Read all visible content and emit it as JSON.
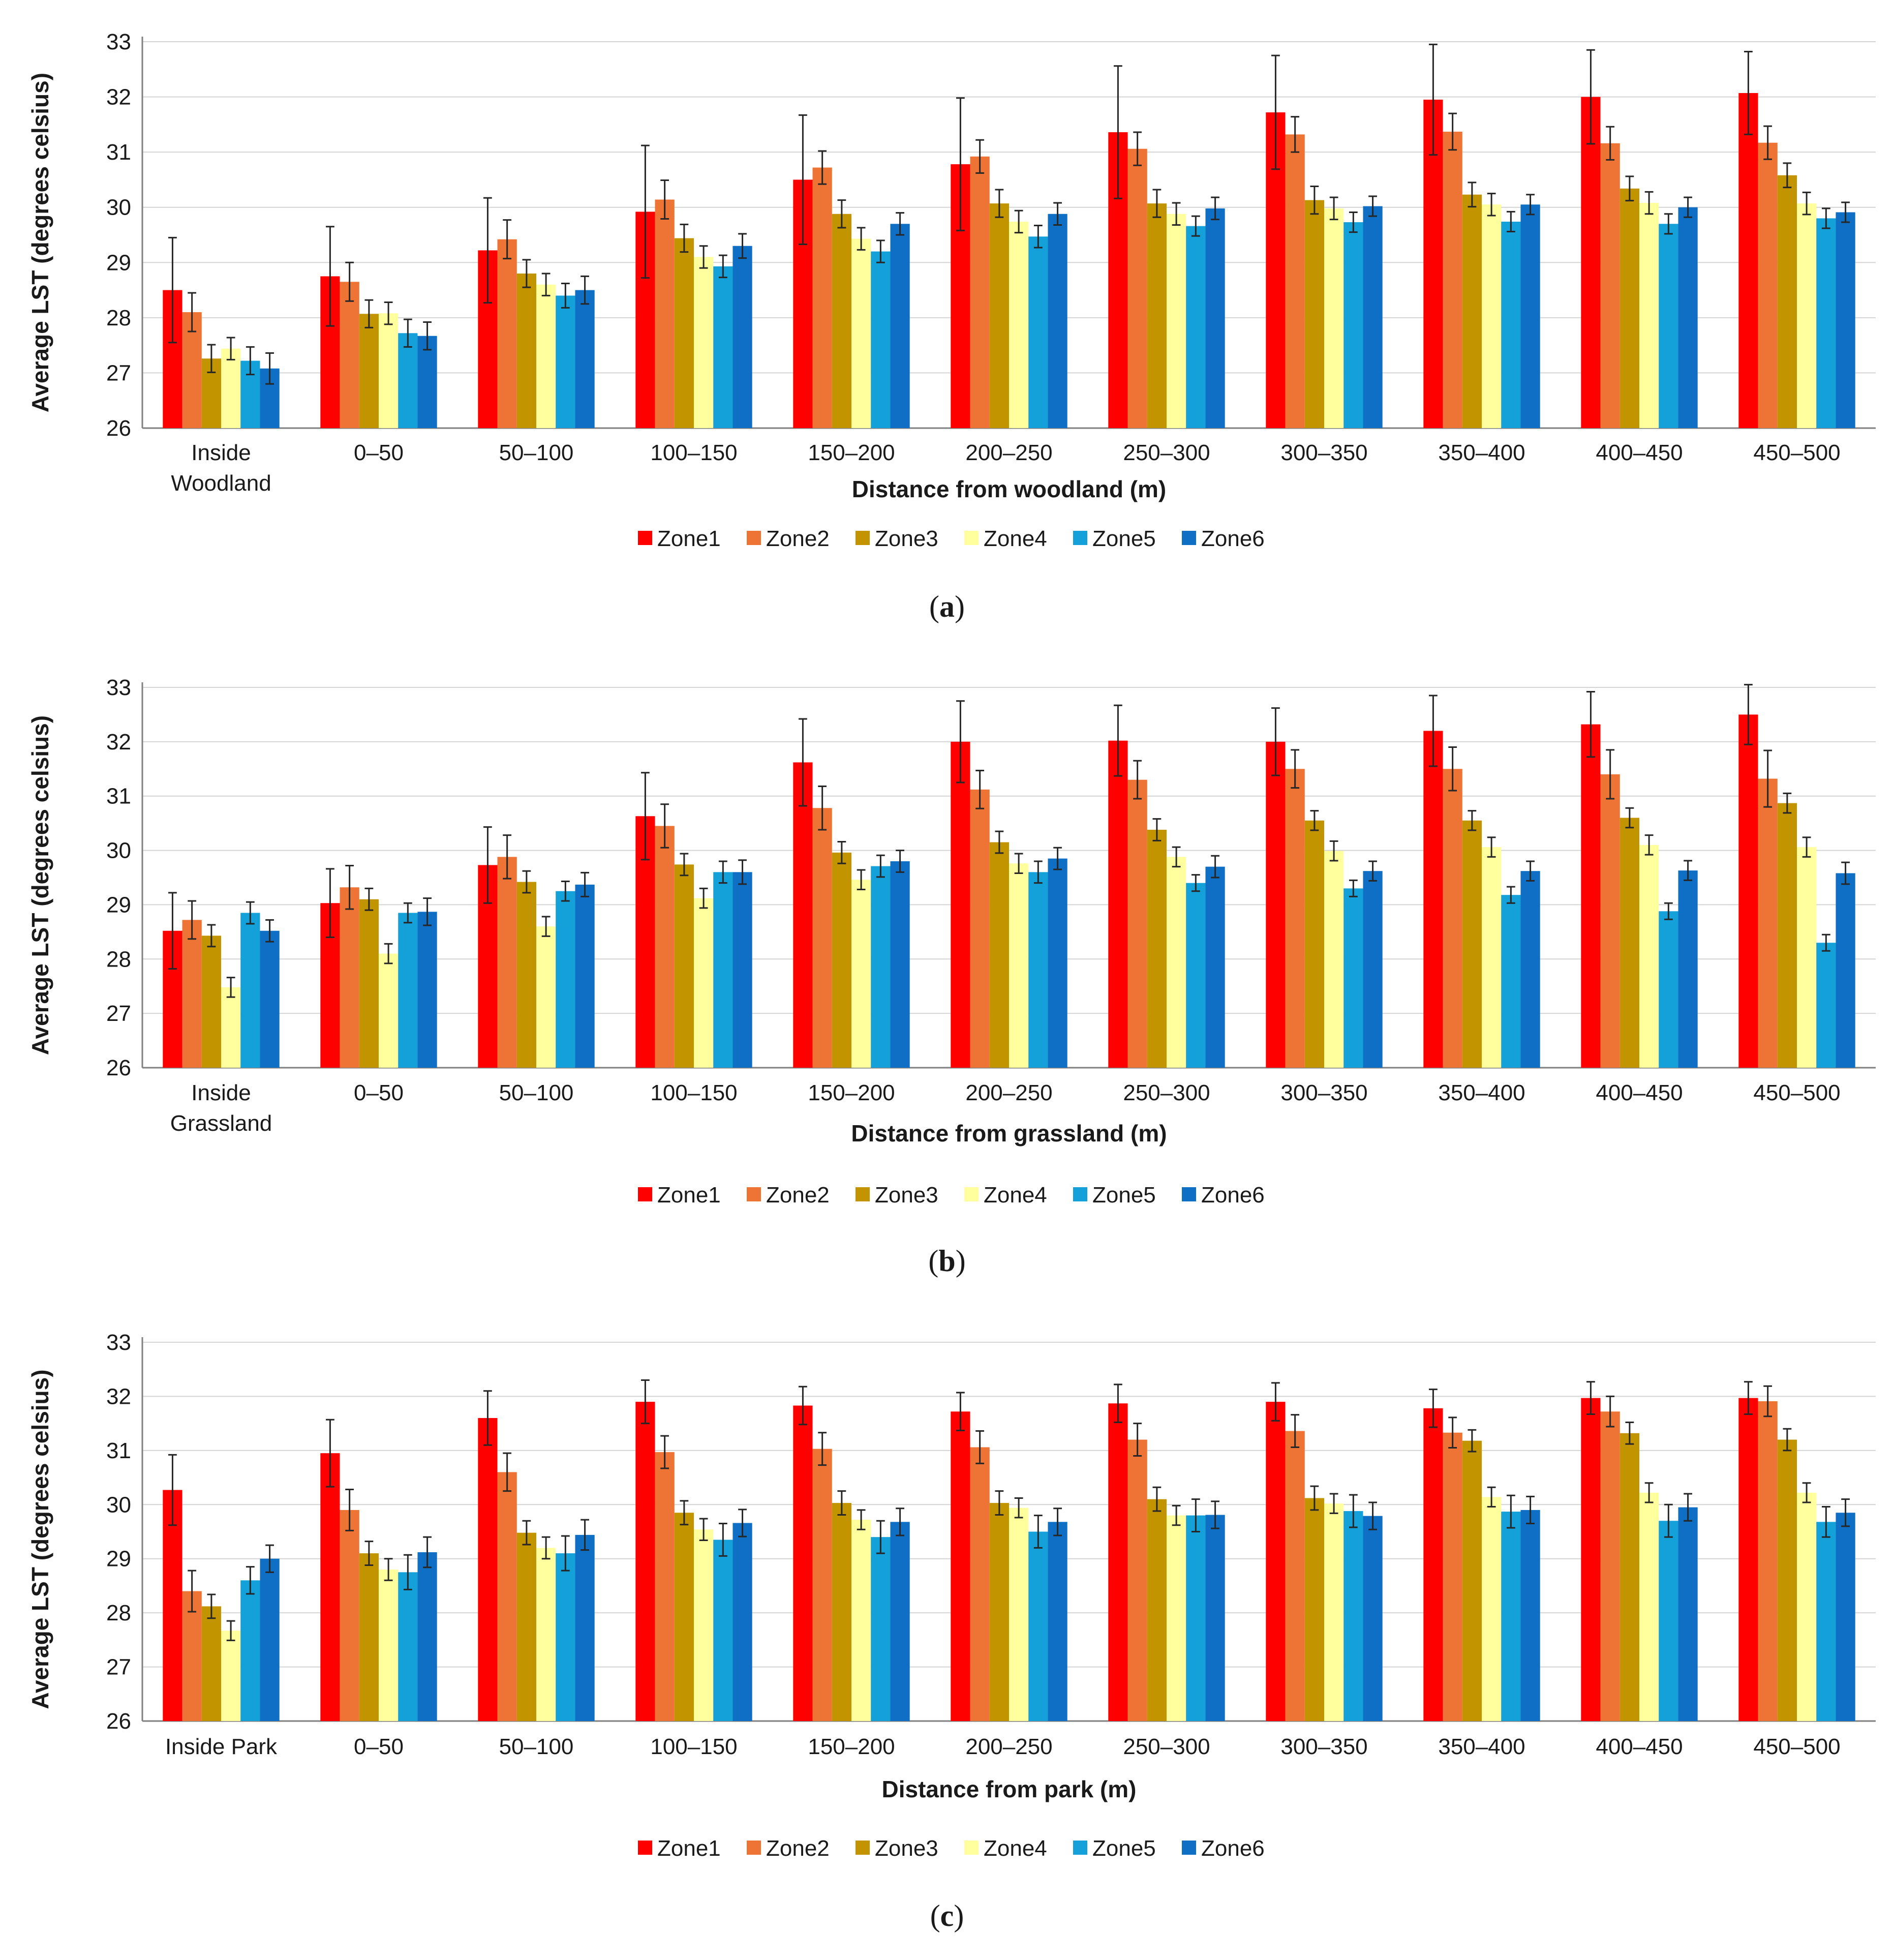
{
  "colors": {
    "Zone1": "#ff0000",
    "Zone2": "#ed7434",
    "Zone3": "#c19400",
    "Zone4": "#ffff9e",
    "Zone5": "#14a0d8",
    "Zone6": "#0f6fc4",
    "grid": "#d4d4d4",
    "axis": "#7f7f7f",
    "error_bar": "#262626"
  },
  "chart_data": [
    {
      "type": "bar",
      "panel": "a",
      "caption": {
        "open": "(",
        "letter": "a",
        "close": ")"
      },
      "xlabel": "Distance from woodland (m)",
      "ylabel": "Average LST (degrees celsius)",
      "ylim": [
        26,
        33
      ],
      "yticks": [
        26,
        27,
        28,
        29,
        30,
        31,
        32,
        33
      ],
      "grid": true,
      "legend_position": "bottom",
      "categories": [
        [
          "Inside",
          "Woodland"
        ],
        [
          "0–50"
        ],
        [
          "50–100"
        ],
        [
          "100–150"
        ],
        [
          "150–200"
        ],
        [
          "200–250"
        ],
        [
          "250–300"
        ],
        [
          "300–350"
        ],
        [
          "350–400"
        ],
        [
          "400–450"
        ],
        [
          "450–500"
        ]
      ],
      "series": [
        {
          "name": "Zone1",
          "values": [
            28.5,
            28.75,
            29.22,
            29.92,
            30.5,
            30.78,
            31.36,
            31.72,
            31.95,
            32.0,
            32.07
          ],
          "errors": [
            0.95,
            0.9,
            0.95,
            1.2,
            1.17,
            1.2,
            1.2,
            1.03,
            1.0,
            0.85,
            0.75
          ]
        },
        {
          "name": "Zone2",
          "values": [
            28.1,
            28.65,
            29.42,
            30.14,
            30.72,
            30.92,
            31.06,
            31.32,
            31.37,
            31.16,
            31.17
          ],
          "errors": [
            0.35,
            0.35,
            0.35,
            0.35,
            0.3,
            0.3,
            0.3,
            0.32,
            0.33,
            0.3,
            0.3
          ]
        },
        {
          "name": "Zone3",
          "values": [
            27.26,
            28.07,
            28.8,
            29.44,
            29.88,
            30.07,
            30.07,
            30.13,
            30.23,
            30.34,
            30.58
          ],
          "errors": [
            0.25,
            0.25,
            0.25,
            0.25,
            0.25,
            0.25,
            0.25,
            0.25,
            0.22,
            0.22,
            0.22
          ]
        },
        {
          "name": "Zone4",
          "values": [
            27.44,
            28.08,
            28.6,
            29.1,
            29.43,
            29.74,
            29.88,
            29.98,
            30.05,
            30.08,
            30.07
          ],
          "errors": [
            0.2,
            0.2,
            0.2,
            0.2,
            0.2,
            0.2,
            0.2,
            0.2,
            0.2,
            0.2,
            0.2
          ]
        },
        {
          "name": "Zone5",
          "values": [
            27.22,
            27.72,
            28.4,
            28.93,
            29.2,
            29.47,
            29.66,
            29.73,
            29.74,
            29.7,
            29.8
          ],
          "errors": [
            0.25,
            0.25,
            0.22,
            0.2,
            0.2,
            0.2,
            0.18,
            0.18,
            0.18,
            0.18,
            0.18
          ]
        },
        {
          "name": "Zone6",
          "values": [
            27.08,
            27.67,
            28.5,
            29.3,
            29.7,
            29.88,
            29.98,
            30.02,
            30.05,
            30.0,
            29.91
          ],
          "errors": [
            0.28,
            0.25,
            0.25,
            0.22,
            0.2,
            0.2,
            0.2,
            0.18,
            0.18,
            0.18,
            0.18
          ]
        }
      ]
    },
    {
      "type": "bar",
      "panel": "b",
      "caption": {
        "open": "(",
        "letter": "b",
        "close": ")"
      },
      "xlabel": "Distance from grassland (m)",
      "ylabel": "Average LST (degrees celsius)",
      "ylim": [
        26,
        33
      ],
      "yticks": [
        26,
        27,
        28,
        29,
        30,
        31,
        32,
        33
      ],
      "grid": true,
      "legend_position": "bottom",
      "categories": [
        [
          "Inside",
          "Grassland"
        ],
        [
          "0–50"
        ],
        [
          "50–100"
        ],
        [
          "100–150"
        ],
        [
          "150–200"
        ],
        [
          "200–250"
        ],
        [
          "250–300"
        ],
        [
          "300–350"
        ],
        [
          "350–400"
        ],
        [
          "400–450"
        ],
        [
          "450–500"
        ]
      ],
      "series": [
        {
          "name": "Zone1",
          "values": [
            28.52,
            29.03,
            29.73,
            30.63,
            31.62,
            32.0,
            32.02,
            32.0,
            32.2,
            32.32,
            32.5
          ],
          "errors": [
            0.7,
            0.63,
            0.7,
            0.8,
            0.8,
            0.75,
            0.65,
            0.62,
            0.65,
            0.6,
            0.55
          ]
        },
        {
          "name": "Zone2",
          "values": [
            28.72,
            29.32,
            29.88,
            30.45,
            30.78,
            31.12,
            31.3,
            31.5,
            31.5,
            31.4,
            31.32
          ],
          "errors": [
            0.35,
            0.4,
            0.4,
            0.4,
            0.4,
            0.35,
            0.35,
            0.35,
            0.4,
            0.45,
            0.52
          ]
        },
        {
          "name": "Zone3",
          "values": [
            28.43,
            29.1,
            29.42,
            29.74,
            29.96,
            30.15,
            30.38,
            30.55,
            30.55,
            30.6,
            30.87
          ],
          "errors": [
            0.2,
            0.2,
            0.2,
            0.2,
            0.2,
            0.2,
            0.2,
            0.18,
            0.18,
            0.18,
            0.18
          ]
        },
        {
          "name": "Zone4",
          "values": [
            27.48,
            28.1,
            28.6,
            29.12,
            29.46,
            29.76,
            29.88,
            29.99,
            30.06,
            30.1,
            30.06
          ],
          "errors": [
            0.18,
            0.18,
            0.18,
            0.18,
            0.18,
            0.18,
            0.18,
            0.18,
            0.18,
            0.18,
            0.18
          ]
        },
        {
          "name": "Zone5",
          "values": [
            28.85,
            28.85,
            29.25,
            29.6,
            29.71,
            29.6,
            29.4,
            29.3,
            29.18,
            28.88,
            28.3
          ],
          "errors": [
            0.2,
            0.18,
            0.18,
            0.2,
            0.2,
            0.2,
            0.15,
            0.15,
            0.15,
            0.15,
            0.15
          ]
        },
        {
          "name": "Zone6",
          "values": [
            28.52,
            28.87,
            29.37,
            29.6,
            29.8,
            29.85,
            29.7,
            29.62,
            29.62,
            29.63,
            29.58
          ],
          "errors": [
            0.2,
            0.25,
            0.22,
            0.22,
            0.2,
            0.2,
            0.2,
            0.18,
            0.18,
            0.18,
            0.2
          ]
        }
      ]
    },
    {
      "type": "bar",
      "panel": "c",
      "caption": {
        "open": "(",
        "letter": "c",
        "close": ")"
      },
      "xlabel": "Distance from park (m)",
      "ylabel": "Average LST (degrees celsius)",
      "ylim": [
        26,
        33
      ],
      "yticks": [
        26,
        27,
        28,
        29,
        30,
        31,
        32,
        33
      ],
      "grid": true,
      "legend_position": "bottom",
      "categories": [
        [
          "Inside Park"
        ],
        [
          "0–50"
        ],
        [
          "50–100"
        ],
        [
          "100–150"
        ],
        [
          "150–200"
        ],
        [
          "200–250"
        ],
        [
          "250–300"
        ],
        [
          "300–350"
        ],
        [
          "350–400"
        ],
        [
          "400–450"
        ],
        [
          "450–500"
        ]
      ],
      "series": [
        {
          "name": "Zone1",
          "values": [
            30.27,
            30.95,
            31.6,
            31.9,
            31.83,
            31.72,
            31.87,
            31.9,
            31.78,
            31.97,
            31.97
          ],
          "errors": [
            0.65,
            0.62,
            0.5,
            0.4,
            0.35,
            0.35,
            0.35,
            0.35,
            0.35,
            0.3,
            0.3
          ]
        },
        {
          "name": "Zone2",
          "values": [
            28.4,
            29.9,
            30.6,
            30.97,
            31.03,
            31.06,
            31.2,
            31.36,
            31.33,
            31.72,
            31.91
          ],
          "errors": [
            0.38,
            0.38,
            0.35,
            0.3,
            0.3,
            0.3,
            0.3,
            0.3,
            0.28,
            0.28,
            0.28
          ]
        },
        {
          "name": "Zone3",
          "values": [
            28.12,
            29.1,
            29.48,
            29.85,
            30.03,
            30.03,
            30.1,
            30.12,
            31.18,
            31.32,
            31.2
          ],
          "errors": [
            0.22,
            0.22,
            0.22,
            0.22,
            0.22,
            0.22,
            0.22,
            0.22,
            0.2,
            0.2,
            0.2
          ]
        },
        {
          "name": "Zone4",
          "values": [
            27.67,
            28.8,
            29.2,
            29.54,
            29.72,
            29.94,
            29.8,
            30.02,
            30.14,
            30.22,
            30.22
          ],
          "errors": [
            0.18,
            0.2,
            0.2,
            0.2,
            0.18,
            0.18,
            0.18,
            0.18,
            0.18,
            0.18,
            0.18
          ]
        },
        {
          "name": "Zone5",
          "values": [
            28.6,
            28.75,
            29.1,
            29.35,
            29.4,
            29.5,
            29.8,
            29.88,
            29.87,
            29.7,
            29.68
          ],
          "errors": [
            0.25,
            0.32,
            0.32,
            0.3,
            0.3,
            0.3,
            0.3,
            0.3,
            0.3,
            0.3,
            0.28
          ]
        },
        {
          "name": "Zone6",
          "values": [
            29.0,
            29.12,
            29.44,
            29.66,
            29.68,
            29.68,
            29.81,
            29.79,
            29.9,
            29.95,
            29.85
          ],
          "errors": [
            0.25,
            0.28,
            0.28,
            0.25,
            0.25,
            0.25,
            0.25,
            0.25,
            0.25,
            0.25,
            0.25
          ]
        }
      ]
    }
  ]
}
